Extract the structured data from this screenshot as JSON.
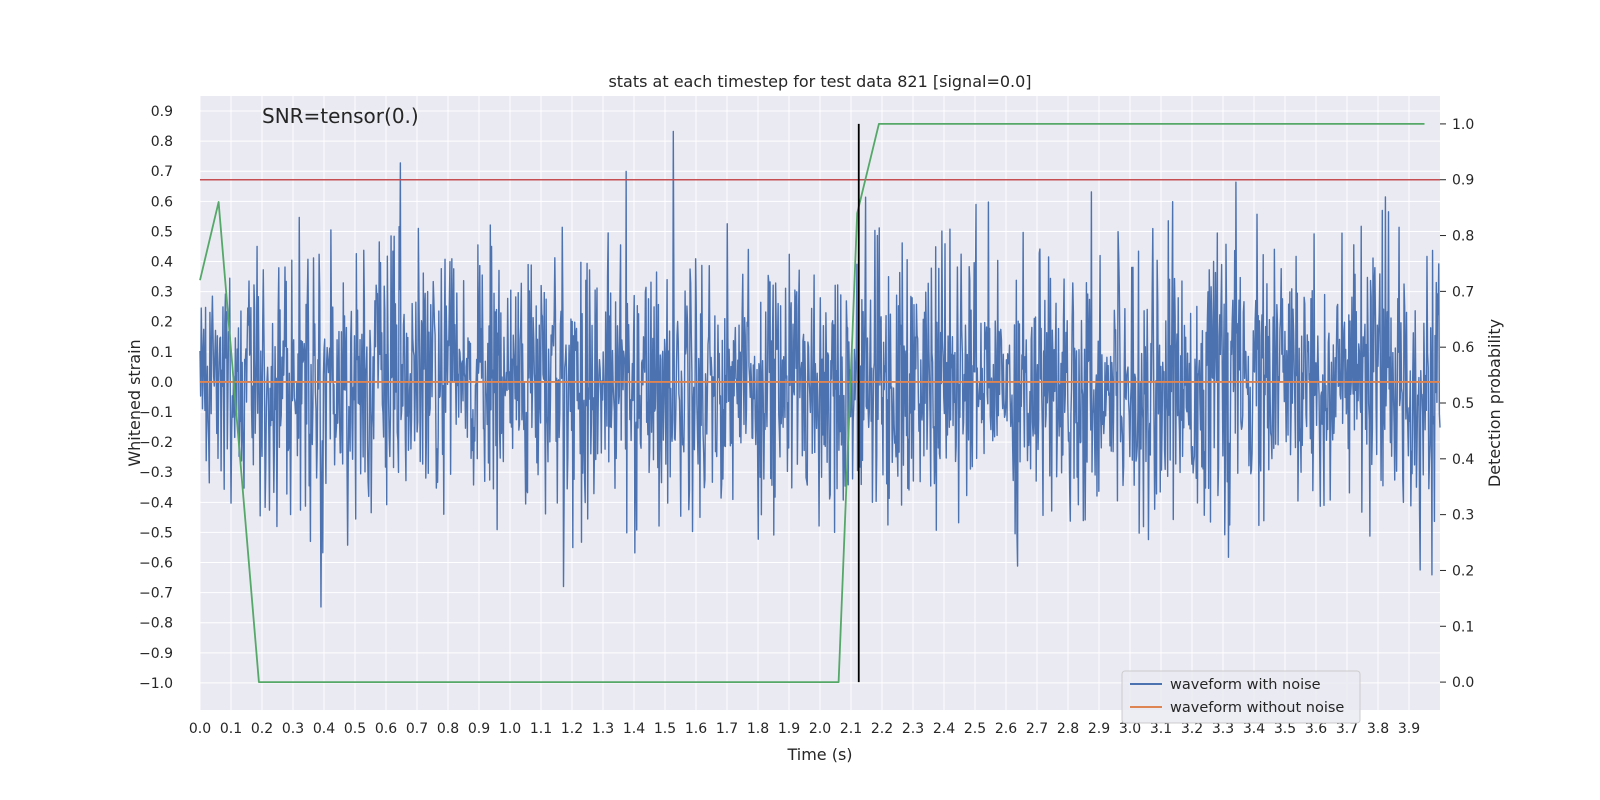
{
  "chart_data": {
    "type": "line",
    "title": "stats at each timestep for test data 821 [signal=0.0]",
    "xlabel": "Time (s)",
    "ylabel": "Whitened strain",
    "y2label": "Detection probability",
    "annotation": "SNR=tensor(0.)",
    "xlim": [
      0.0,
      4.0
    ],
    "ylim": [
      -1.09,
      0.95
    ],
    "y2lim": [
      -0.05,
      1.05
    ],
    "grid": true,
    "legend_position": "lower-right",
    "x_ticks": [
      "0.0",
      "0.1",
      "0.2",
      "0.3",
      "0.4",
      "0.5",
      "0.6",
      "0.7",
      "0.8",
      "0.9",
      "1.0",
      "1.1",
      "1.2",
      "1.3",
      "1.4",
      "1.5",
      "1.6",
      "1.7",
      "1.8",
      "1.9",
      "2.0",
      "2.1",
      "2.2",
      "2.3",
      "2.4",
      "2.5",
      "2.6",
      "2.7",
      "2.8",
      "2.9",
      "3.0",
      "3.1",
      "3.2",
      "3.3",
      "3.4",
      "3.5",
      "3.6",
      "3.7",
      "3.8",
      "3.9"
    ],
    "y_ticks": [
      "0.9",
      "0.8",
      "0.7",
      "0.6",
      "0.5",
      "0.4",
      "0.3",
      "0.2",
      "0.1",
      "0.0",
      "−0.1",
      "−0.2",
      "−0.3",
      "−0.4",
      "−0.5",
      "−0.6",
      "−0.7",
      "−0.8",
      "−0.9",
      "−1.0"
    ],
    "y2_ticks": [
      "1.0",
      "0.9",
      "0.8",
      "0.7",
      "0.6",
      "0.5",
      "0.4",
      "0.3",
      "0.2",
      "0.1",
      "0.0"
    ],
    "series": [
      {
        "name": "waveform with noise",
        "color": "#4c72b0",
        "axis": "left",
        "kind": "noise",
        "sample_count": 2000,
        "amplitude_std": 0.22,
        "x_range": [
          0.0,
          4.0
        ]
      },
      {
        "name": "waveform without noise",
        "color": "#dd8452",
        "axis": "left",
        "x": [
          0.0,
          4.0
        ],
        "values": [
          0.0,
          0.0
        ]
      },
      {
        "color": "#55a868",
        "axis": "right",
        "x": [
          0.0,
          0.06,
          0.19,
          0.25,
          2.0,
          2.06,
          2.12,
          2.19,
          3.95
        ],
        "values": [
          0.72,
          0.86,
          0.0,
          0.0,
          0.0,
          0.0,
          0.84,
          1.0,
          1.0
        ]
      }
    ],
    "threshold_line": {
      "value": 0.9,
      "axis": "right",
      "color": "#c44e52"
    },
    "marker_line": {
      "x": 2.125,
      "y2_range": [
        0.0,
        1.0
      ],
      "color": "#000000"
    }
  }
}
